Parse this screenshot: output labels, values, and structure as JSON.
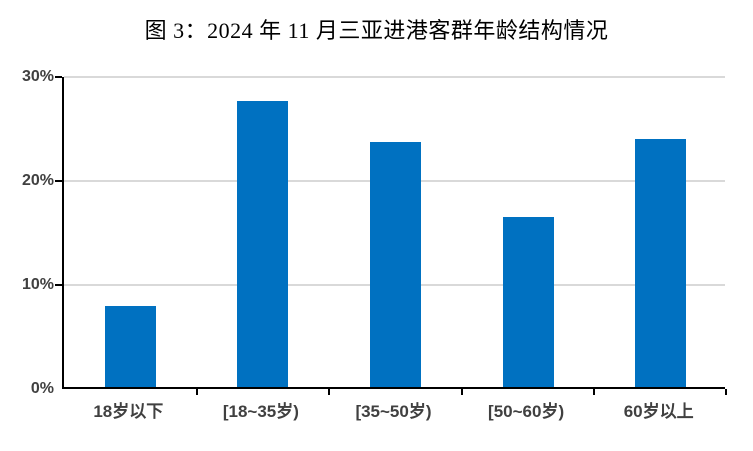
{
  "title": "图 3：2024 年 11 月三亚进港客群年龄结构情况",
  "colors": {
    "bar": "#0071C1",
    "axis": "#000000",
    "gridline": "#D9D9D9",
    "tick_label": "#404040",
    "title": "#000000",
    "background": "#FFFFFF"
  },
  "chart_data": {
    "type": "bar",
    "title": "图 3：2024 年 11 月三亚进港客群年龄结构情况",
    "categories": [
      "18岁以下",
      "[18~35岁)",
      "[35~50岁)",
      "[50~60岁)",
      "60岁以上"
    ],
    "values": [
      7.8,
      27.5,
      23.6,
      16.3,
      23.8
    ],
    "unit": "%",
    "xlabel": "",
    "ylabel": "",
    "ylim": [
      0,
      30
    ],
    "ytick_step": 10,
    "ytick_labels": [
      "0%",
      "10%",
      "20%",
      "30%"
    ],
    "grid": true,
    "legend_position": "none"
  }
}
